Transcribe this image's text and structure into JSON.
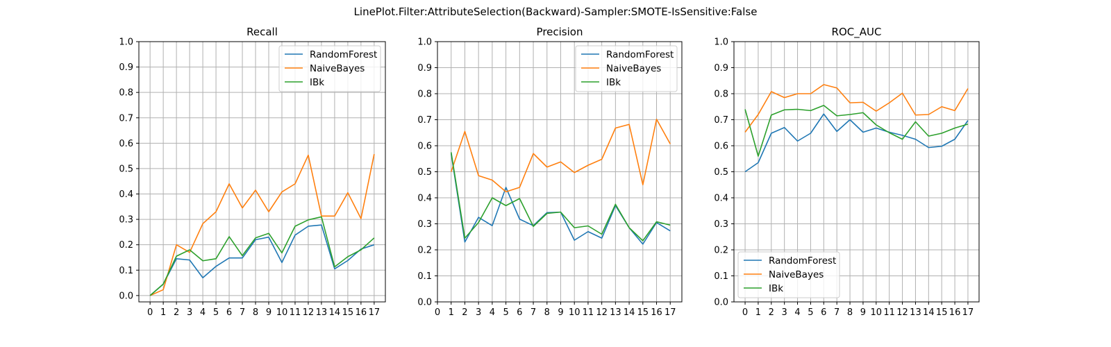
{
  "figure_title": "LinePlot.Filter:AttributeSelection(Backward)-Sampler:SMOTE-IsSensitive:False",
  "colors": {
    "RandomForest": "#1f77b4",
    "NaiveBayes": "#ff7f0e",
    "IBk": "#2ca02c"
  },
  "chart_data": [
    {
      "type": "line",
      "title": "Recall",
      "xlim": [
        -0.85,
        17.85
      ],
      "ylim": [
        -0.025,
        1.0
      ],
      "xticks": [
        0,
        1,
        2,
        3,
        4,
        5,
        6,
        7,
        8,
        9,
        10,
        11,
        12,
        13,
        14,
        15,
        16,
        17
      ],
      "yticks": [
        0.0,
        0.1,
        0.2,
        0.3,
        0.4,
        0.5,
        0.6,
        0.7,
        0.8,
        0.9,
        1.0
      ],
      "grid": true,
      "legend": "top-right",
      "series": [
        {
          "name": "RandomForest",
          "x": [
            0,
            1,
            2,
            3,
            4,
            5,
            6,
            7,
            8,
            9,
            10,
            11,
            12,
            13,
            14,
            15,
            16,
            17
          ],
          "values": [
            0.0,
            0.045,
            0.145,
            0.14,
            0.07,
            0.115,
            0.148,
            0.148,
            0.22,
            0.23,
            0.13,
            0.238,
            0.273,
            0.278,
            0.105,
            0.138,
            0.183,
            0.2
          ]
        },
        {
          "name": "NaiveBayes",
          "x": [
            0,
            1,
            2,
            3,
            4,
            5,
            6,
            7,
            8,
            9,
            10,
            11,
            12,
            13,
            14,
            15,
            16,
            17
          ],
          "values": [
            0.0,
            0.023,
            0.2,
            0.17,
            0.283,
            0.33,
            0.44,
            0.345,
            0.415,
            0.33,
            0.408,
            0.44,
            0.553,
            0.313,
            0.313,
            0.405,
            0.303,
            0.557
          ]
        },
        {
          "name": "IBk",
          "x": [
            0,
            1,
            2,
            3,
            4,
            5,
            6,
            7,
            8,
            9,
            10,
            11,
            12,
            13,
            14,
            15,
            16,
            17
          ],
          "values": [
            0.0,
            0.045,
            0.155,
            0.18,
            0.137,
            0.145,
            0.232,
            0.157,
            0.227,
            0.245,
            0.168,
            0.273,
            0.298,
            0.31,
            0.113,
            0.153,
            0.18,
            0.227
          ]
        }
      ]
    },
    {
      "type": "line",
      "title": "Precision",
      "xlim": [
        -0.0,
        17.85
      ],
      "ylim": [
        0.0,
        1.0
      ],
      "xticks": [
        0,
        1,
        2,
        3,
        4,
        5,
        6,
        7,
        8,
        9,
        10,
        11,
        12,
        13,
        14,
        15,
        16,
        17
      ],
      "yticks": [
        0.0,
        0.1,
        0.2,
        0.3,
        0.4,
        0.5,
        0.6,
        0.7,
        0.8,
        0.9,
        1.0
      ],
      "grid": true,
      "legend": "top-right",
      "series": [
        {
          "name": "RandomForest",
          "x": [
            1,
            2,
            3,
            4,
            5,
            6,
            7,
            8,
            9,
            10,
            11,
            12,
            13,
            14,
            15,
            16,
            17
          ],
          "values": [
            0.57,
            0.23,
            0.325,
            0.293,
            0.44,
            0.318,
            0.293,
            0.343,
            0.345,
            0.237,
            0.27,
            0.245,
            0.37,
            0.285,
            0.222,
            0.305,
            0.273
          ]
        },
        {
          "name": "NaiveBayes",
          "x": [
            1,
            2,
            3,
            4,
            5,
            6,
            7,
            8,
            9,
            10,
            11,
            12,
            13,
            14,
            15,
            16,
            17
          ],
          "values": [
            0.5,
            0.655,
            0.485,
            0.468,
            0.423,
            0.44,
            0.57,
            0.518,
            0.538,
            0.497,
            0.525,
            0.548,
            0.668,
            0.682,
            0.45,
            0.702,
            0.607
          ]
        },
        {
          "name": "IBk",
          "x": [
            1,
            2,
            3,
            4,
            5,
            6,
            7,
            8,
            9,
            10,
            11,
            12,
            13,
            14,
            15,
            16,
            17
          ],
          "values": [
            0.575,
            0.245,
            0.305,
            0.4,
            0.37,
            0.397,
            0.29,
            0.34,
            0.345,
            0.285,
            0.292,
            0.26,
            0.375,
            0.285,
            0.235,
            0.308,
            0.295
          ]
        }
      ]
    },
    {
      "type": "line",
      "title": "ROC_AUC",
      "xlim": [
        -0.85,
        17.85
      ],
      "ylim": [
        0.0,
        1.0
      ],
      "xticks": [
        0,
        1,
        2,
        3,
        4,
        5,
        6,
        7,
        8,
        9,
        10,
        11,
        12,
        13,
        14,
        15,
        16,
        17
      ],
      "yticks": [
        0.0,
        0.1,
        0.2,
        0.3,
        0.4,
        0.5,
        0.6,
        0.7,
        0.8,
        0.9,
        1.0
      ],
      "grid": true,
      "legend": "bottom-left",
      "series": [
        {
          "name": "RandomForest",
          "x": [
            0,
            1,
            2,
            3,
            4,
            5,
            6,
            7,
            8,
            9,
            10,
            11,
            12,
            13,
            14,
            15,
            16,
            17
          ],
          "values": [
            0.5,
            0.535,
            0.648,
            0.67,
            0.618,
            0.648,
            0.722,
            0.655,
            0.7,
            0.652,
            0.668,
            0.652,
            0.64,
            0.625,
            0.593,
            0.598,
            0.625,
            0.697
          ]
        },
        {
          "name": "NaiveBayes",
          "x": [
            0,
            1,
            2,
            3,
            4,
            5,
            6,
            7,
            8,
            9,
            10,
            11,
            12,
            13,
            14,
            15,
            16,
            17
          ],
          "values": [
            0.652,
            0.72,
            0.808,
            0.785,
            0.8,
            0.8,
            0.835,
            0.822,
            0.765,
            0.767,
            0.733,
            0.765,
            0.802,
            0.718,
            0.72,
            0.75,
            0.735,
            0.82
          ]
        },
        {
          "name": "IBk",
          "x": [
            0,
            1,
            2,
            3,
            4,
            5,
            6,
            7,
            8,
            9,
            10,
            11,
            12,
            13,
            14,
            15,
            16,
            17
          ],
          "values": [
            0.74,
            0.56,
            0.718,
            0.738,
            0.74,
            0.735,
            0.755,
            0.715,
            0.72,
            0.727,
            0.68,
            0.65,
            0.625,
            0.692,
            0.637,
            0.648,
            0.668,
            0.683
          ]
        }
      ]
    }
  ]
}
